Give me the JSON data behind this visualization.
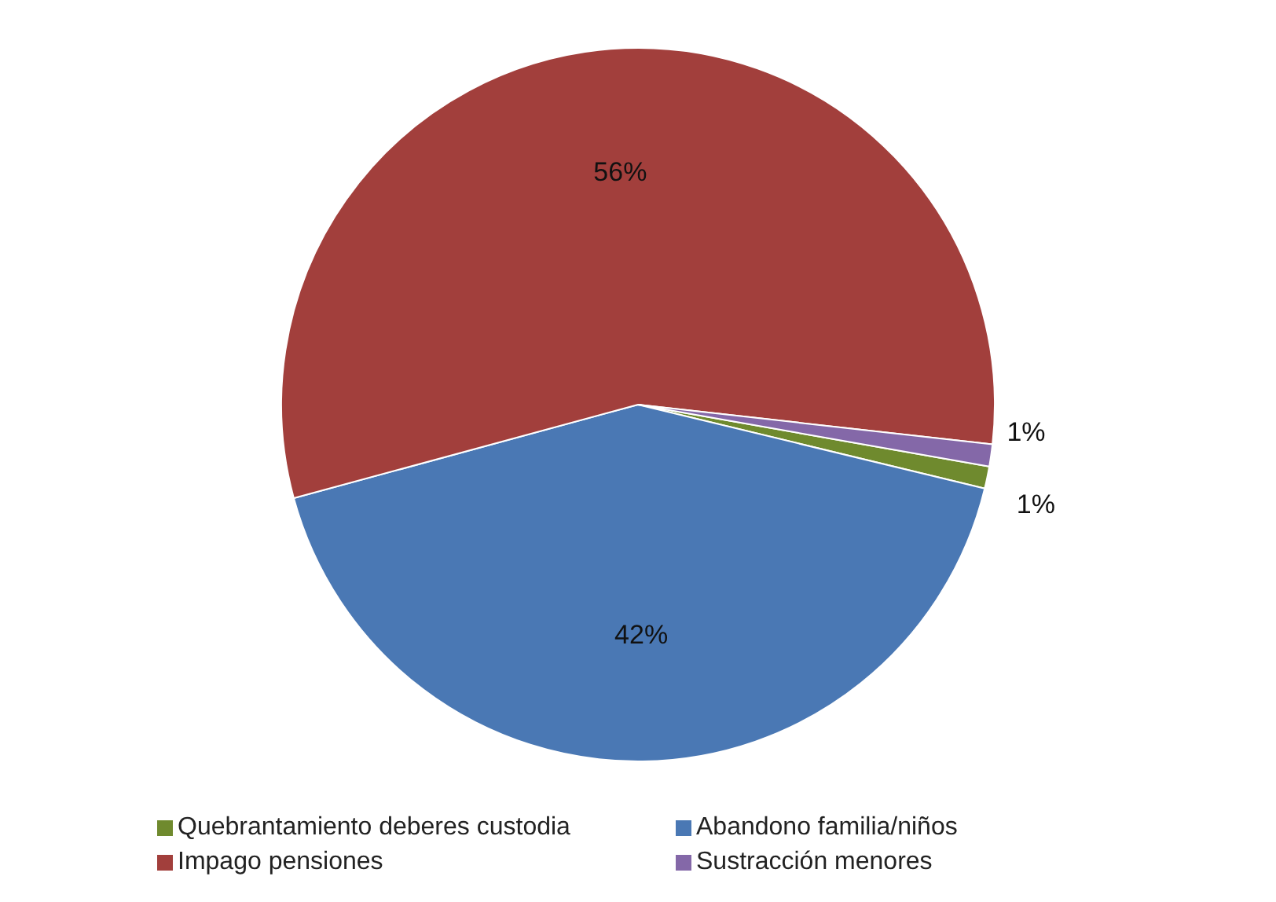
{
  "chart_data": {
    "type": "pie",
    "categories": [
      "Quebrantamiento deberes custodia",
      "Abandono familia/niños",
      "Impago pensiones",
      "Sustracción menores"
    ],
    "values": [
      1,
      42,
      56,
      1
    ],
    "value_labels": [
      "1%",
      "42%",
      "56%",
      "1%"
    ],
    "colors": [
      "#6f8a2e",
      "#4a78b4",
      "#a23f3c",
      "#8468a8"
    ],
    "legend": "bottom"
  }
}
